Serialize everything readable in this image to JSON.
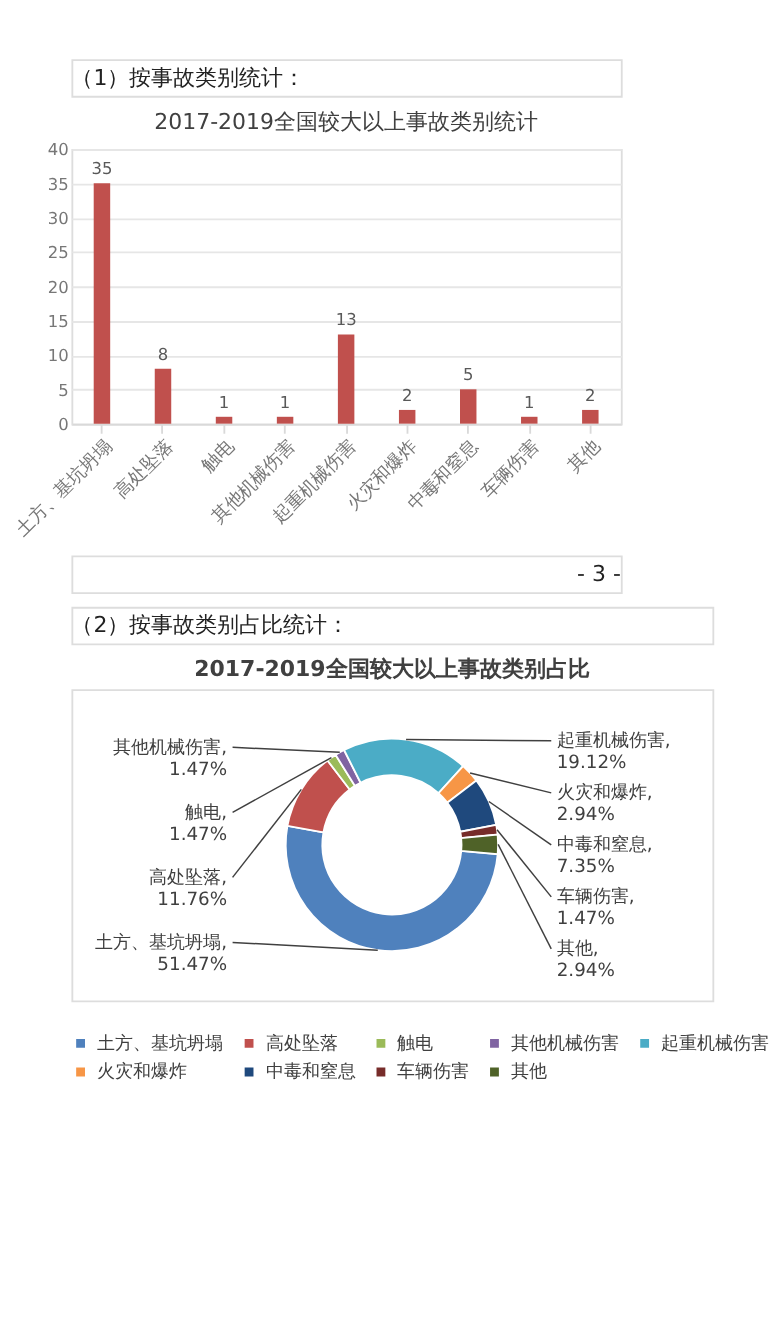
{
  "chart_data": [
    {
      "type": "bar",
      "title": "2017-2019全国较大以上事故类别统计",
      "annotations": [
        "（1）按事故类别统计：",
        "- 3 -"
      ],
      "categories": [
        "土方、基坑坍塌",
        "高处坠落",
        "触电",
        "其他机械伤害",
        "起重机械伤害",
        "火灾和爆炸",
        "中毒和窒息",
        "车辆伤害",
        "其他"
      ],
      "values": [
        35,
        8,
        1,
        1,
        13,
        2,
        5,
        1,
        2
      ],
      "color": "#c0504d",
      "ylim": [
        0,
        40
      ],
      "yticks": [
        0,
        5,
        10,
        15,
        20,
        25,
        30,
        35,
        40
      ],
      "grid": "y",
      "data_labels": true
    },
    {
      "type": "donut",
      "title": "2017-2019全国较大以上事故类别占比",
      "annotations": [
        "（2）按事故类别占比统计："
      ],
      "categories": [
        "土方、基坑坍塌",
        "高处坠落",
        "触电",
        "其他机械伤害",
        "起重机械伤害",
        "火灾和爆炸",
        "中毒和窒息",
        "车辆伤害",
        "其他"
      ],
      "values": [
        51.47,
        11.76,
        1.47,
        1.47,
        19.12,
        2.94,
        7.35,
        1.47,
        2.94
      ],
      "value_labels": [
        "土方、基坑坍塌, 51.47%",
        "高处坠落, 11.76%",
        "触电, 1.47%",
        "其他机械伤害, 1.47%",
        "起重机械伤害, 19.12%",
        "火灾和爆炸, 2.94%",
        "中毒和窒息, 7.35%",
        "车辆伤害, 1.47%",
        "其他, 2.94%"
      ],
      "colors": [
        "#4f81bd",
        "#c0504d",
        "#9bbb59",
        "#8064a2",
        "#4bacc6",
        "#f79646",
        "#1f497d",
        "#772c2a",
        "#4f6228"
      ],
      "legend": "bottom"
    }
  ]
}
